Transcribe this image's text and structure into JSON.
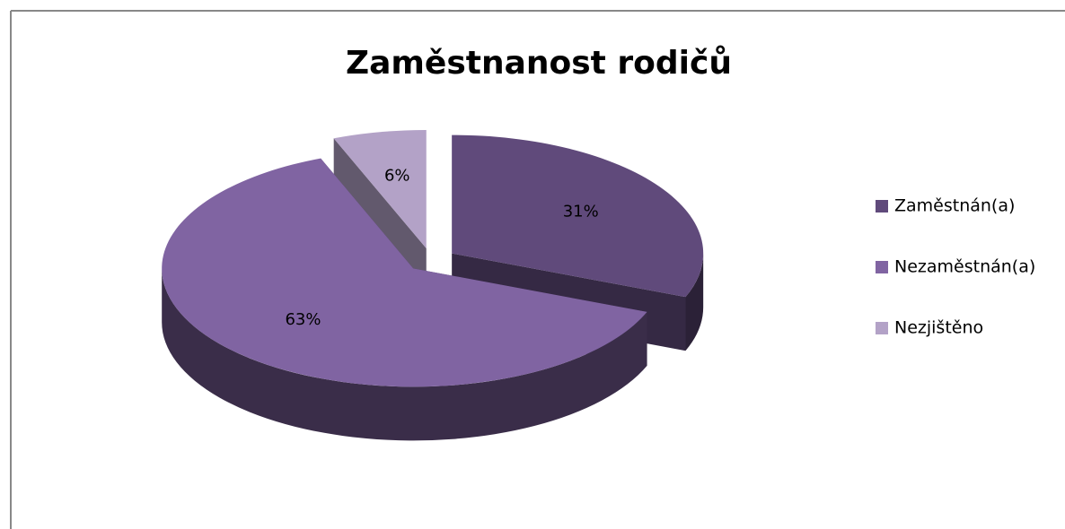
{
  "chart_data": {
    "type": "pie",
    "title": "Zaměstnanost rodičů",
    "categories": [
      "Zaměstnán(a)",
      "Nezaměstnán(a)",
      "Nezjištěno"
    ],
    "values": [
      31,
      63,
      6
    ],
    "value_labels": [
      "31%",
      "63%",
      "6%"
    ],
    "colors": [
      "#604a7b",
      "#8064a2",
      "#b3a2c7"
    ],
    "legend": "right"
  }
}
